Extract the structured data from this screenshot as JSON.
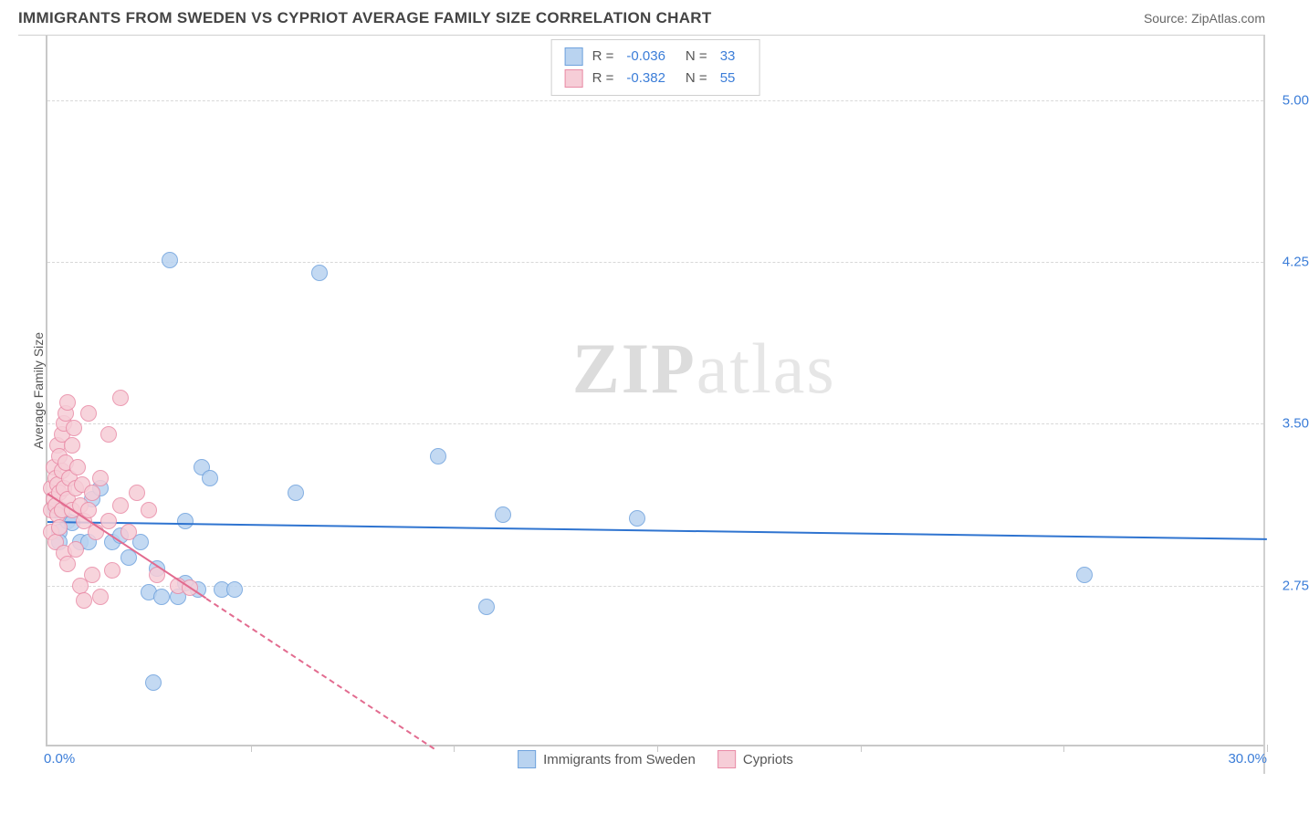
{
  "header": {
    "title": "IMMIGRANTS FROM SWEDEN VS CYPRIOT AVERAGE FAMILY SIZE CORRELATION CHART",
    "source_prefix": "Source: ",
    "source_name": "ZipAtlas.com"
  },
  "watermark": {
    "a": "ZIP",
    "b": "atlas"
  },
  "chart": {
    "type": "scatter",
    "ylabel": "Average Family Size",
    "x_min_label": "0.0%",
    "x_max_label": "30.0%",
    "xlim": [
      0,
      30
    ],
    "ylim": [
      2.0,
      5.3
    ],
    "yticks": [
      2.75,
      3.5,
      4.25,
      5.0
    ],
    "ytick_labels": [
      "2.75",
      "3.50",
      "4.25",
      "5.00"
    ],
    "xticks": [
      5,
      10,
      15,
      20,
      25,
      30
    ],
    "background_color": "#ffffff",
    "grid_color": "#d8d8d8",
    "axis_color": "#c8c8c8",
    "tick_label_color": "#3b7dd8",
    "marker_radius": 9,
    "marker_stroke_width": 1.2,
    "series": [
      {
        "key": "sweden",
        "label": "Immigrants from Sweden",
        "fill": "#b9d3f0",
        "stroke": "#6fa2dd",
        "trend_color": "#2f74d0",
        "R": "-0.036",
        "N": "33",
        "trend": {
          "x1": 0,
          "y1": 3.05,
          "x2": 30,
          "y2": 2.97,
          "dashed_after_x": null
        },
        "points": [
          {
            "x": 0.2,
            "y": 3.1
          },
          {
            "x": 0.3,
            "y": 3.0
          },
          {
            "x": 0.3,
            "y": 2.95
          },
          {
            "x": 0.5,
            "y": 3.05
          },
          {
            "x": 0.6,
            "y": 3.04
          },
          {
            "x": 0.8,
            "y": 2.95
          },
          {
            "x": 1.0,
            "y": 2.95
          },
          {
            "x": 1.1,
            "y": 3.15
          },
          {
            "x": 1.3,
            "y": 3.2
          },
          {
            "x": 1.6,
            "y": 2.95
          },
          {
            "x": 1.8,
            "y": 2.98
          },
          {
            "x": 2.0,
            "y": 2.88
          },
          {
            "x": 2.3,
            "y": 2.95
          },
          {
            "x": 2.5,
            "y": 2.72
          },
          {
            "x": 2.7,
            "y": 2.83
          },
          {
            "x": 3.0,
            "y": 4.26
          },
          {
            "x": 2.8,
            "y": 2.7
          },
          {
            "x": 3.2,
            "y": 2.7
          },
          {
            "x": 3.4,
            "y": 3.05
          },
          {
            "x": 3.4,
            "y": 2.76
          },
          {
            "x": 3.7,
            "y": 2.73
          },
          {
            "x": 3.8,
            "y": 3.3
          },
          {
            "x": 4.0,
            "y": 3.25
          },
          {
            "x": 4.3,
            "y": 2.73
          },
          {
            "x": 4.6,
            "y": 2.73
          },
          {
            "x": 6.1,
            "y": 3.18
          },
          {
            "x": 6.7,
            "y": 4.2
          },
          {
            "x": 2.6,
            "y": 2.3
          },
          {
            "x": 9.6,
            "y": 3.35
          },
          {
            "x": 10.8,
            "y": 2.65
          },
          {
            "x": 11.2,
            "y": 3.08
          },
          {
            "x": 14.5,
            "y": 3.06
          },
          {
            "x": 25.5,
            "y": 2.8
          }
        ]
      },
      {
        "key": "cypriot",
        "label": "Cypriots",
        "fill": "#f6cdd7",
        "stroke": "#e98ba6",
        "trend_color": "#e26b8f",
        "R": "-0.382",
        "N": "55",
        "trend": {
          "x1": 0,
          "y1": 3.18,
          "x2": 9.5,
          "y2": 2.0,
          "dashed_after_x": 3.9
        },
        "points": [
          {
            "x": 0.1,
            "y": 3.2
          },
          {
            "x": 0.1,
            "y": 3.1
          },
          {
            "x": 0.1,
            "y": 3.0
          },
          {
            "x": 0.15,
            "y": 3.3
          },
          {
            "x": 0.15,
            "y": 3.15
          },
          {
            "x": 0.2,
            "y": 3.25
          },
          {
            "x": 0.2,
            "y": 3.12
          },
          {
            "x": 0.2,
            "y": 2.95
          },
          {
            "x": 0.25,
            "y": 3.4
          },
          {
            "x": 0.25,
            "y": 3.22
          },
          {
            "x": 0.25,
            "y": 3.08
          },
          {
            "x": 0.3,
            "y": 3.35
          },
          {
            "x": 0.3,
            "y": 3.18
          },
          {
            "x": 0.3,
            "y": 3.02
          },
          {
            "x": 0.35,
            "y": 3.45
          },
          {
            "x": 0.35,
            "y": 3.28
          },
          {
            "x": 0.35,
            "y": 3.1
          },
          {
            "x": 0.4,
            "y": 3.5
          },
          {
            "x": 0.4,
            "y": 3.2
          },
          {
            "x": 0.4,
            "y": 2.9
          },
          {
            "x": 0.45,
            "y": 3.55
          },
          {
            "x": 0.45,
            "y": 3.32
          },
          {
            "x": 0.5,
            "y": 3.6
          },
          {
            "x": 0.5,
            "y": 3.15
          },
          {
            "x": 0.5,
            "y": 2.85
          },
          {
            "x": 0.55,
            "y": 3.25
          },
          {
            "x": 0.6,
            "y": 3.4
          },
          {
            "x": 0.6,
            "y": 3.1
          },
          {
            "x": 0.65,
            "y": 3.48
          },
          {
            "x": 0.7,
            "y": 3.2
          },
          {
            "x": 0.7,
            "y": 2.92
          },
          {
            "x": 0.75,
            "y": 3.3
          },
          {
            "x": 0.8,
            "y": 3.12
          },
          {
            "x": 0.8,
            "y": 2.75
          },
          {
            "x": 0.85,
            "y": 3.22
          },
          {
            "x": 0.9,
            "y": 3.05
          },
          {
            "x": 0.9,
            "y": 2.68
          },
          {
            "x": 1.0,
            "y": 3.55
          },
          {
            "x": 1.0,
            "y": 3.1
          },
          {
            "x": 1.1,
            "y": 3.18
          },
          {
            "x": 1.1,
            "y": 2.8
          },
          {
            "x": 1.2,
            "y": 3.0
          },
          {
            "x": 1.3,
            "y": 3.25
          },
          {
            "x": 1.3,
            "y": 2.7
          },
          {
            "x": 1.5,
            "y": 3.45
          },
          {
            "x": 1.5,
            "y": 3.05
          },
          {
            "x": 1.6,
            "y": 2.82
          },
          {
            "x": 1.8,
            "y": 3.62
          },
          {
            "x": 1.8,
            "y": 3.12
          },
          {
            "x": 2.0,
            "y": 3.0
          },
          {
            "x": 2.2,
            "y": 3.18
          },
          {
            "x": 2.5,
            "y": 3.1
          },
          {
            "x": 2.7,
            "y": 2.8
          },
          {
            "x": 3.2,
            "y": 2.75
          },
          {
            "x": 3.5,
            "y": 2.74
          }
        ]
      }
    ],
    "legend_bottom": [
      {
        "label": "Immigrants from Sweden",
        "fill": "#b9d3f0",
        "stroke": "#6fa2dd"
      },
      {
        "label": "Cypriots",
        "fill": "#f6cdd7",
        "stroke": "#e98ba6"
      }
    ]
  }
}
